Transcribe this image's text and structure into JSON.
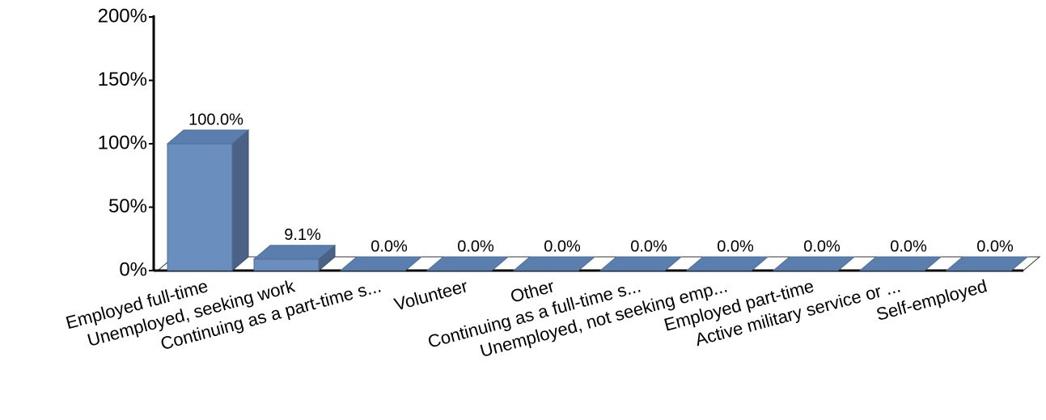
{
  "chart_data": {
    "type": "bar3d",
    "categories": [
      "Employed full-time",
      "Unemployed, seeking work",
      "Continuing as a part-time s...",
      "Volunteer",
      "Other",
      "Continuing as a full-time s...",
      "Unemployed, not seeking emp...",
      "Employed part-time",
      "Active military service or  ...",
      "Self-employed"
    ],
    "values": [
      100.0,
      9.1,
      0,
      0,
      0,
      0,
      0,
      0,
      0,
      0
    ],
    "value_labels": [
      "100.0%",
      "9.1%",
      "0.0%",
      "0.0%",
      "0.0%",
      "0.0%",
      "0.0%",
      "0.0%",
      "0.0%",
      "0.0%"
    ],
    "color": "#6a8fbf",
    "ylim": [
      0,
      200
    ],
    "yticks": [
      {
        "value": 0,
        "label": "0%"
      },
      {
        "value": 50,
        "label": "50%"
      },
      {
        "value": 100,
        "label": "100%"
      },
      {
        "value": 150,
        "label": "150%"
      },
      {
        "value": 200,
        "label": "200%"
      }
    ]
  }
}
